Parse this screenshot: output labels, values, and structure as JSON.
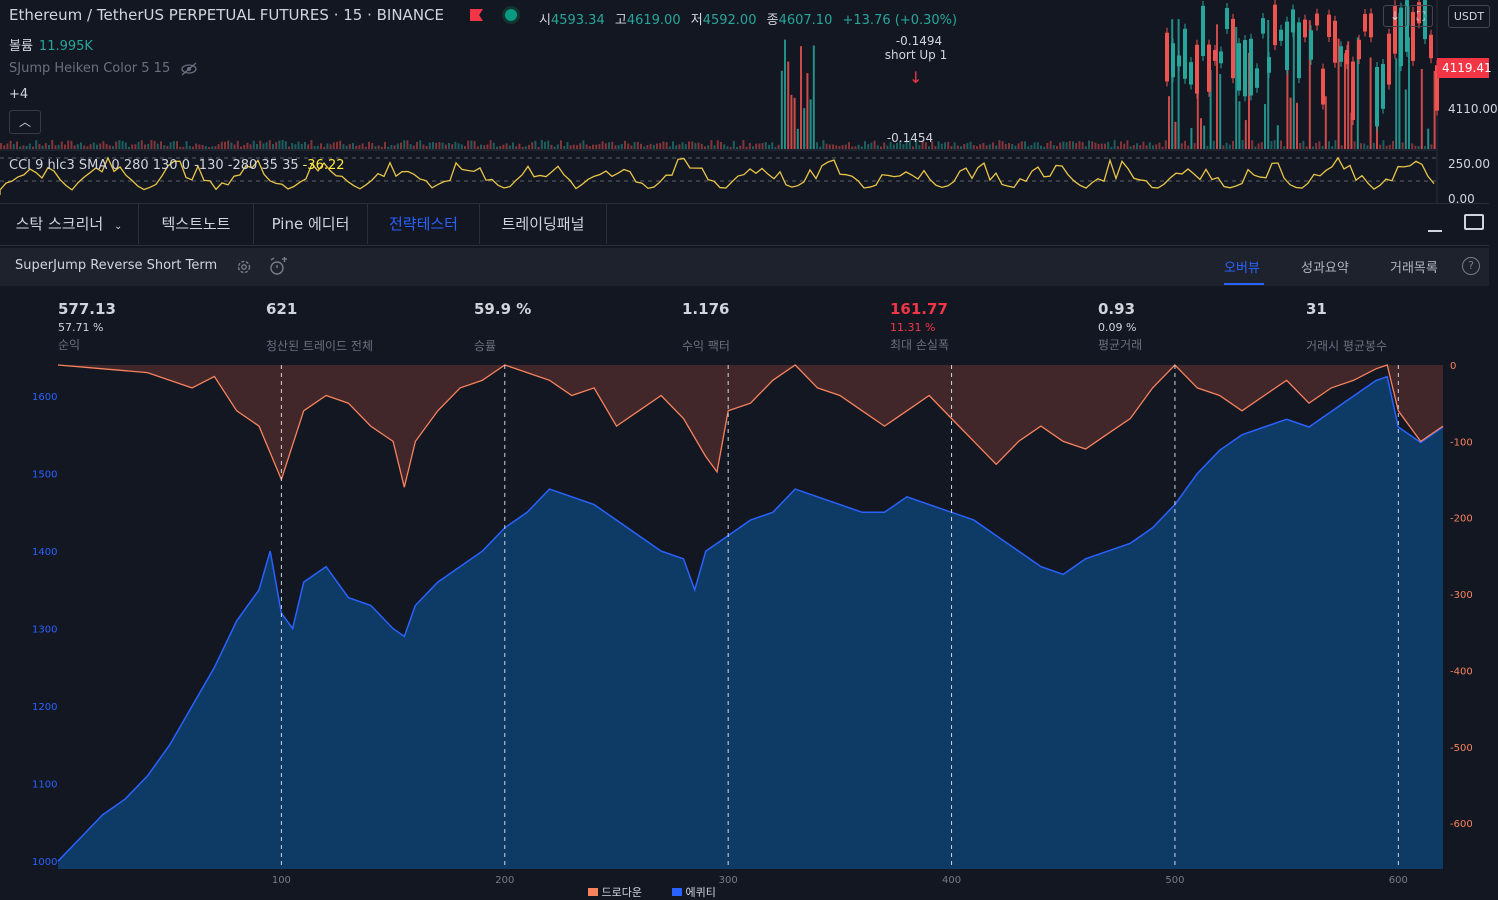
{
  "header": {
    "symbol": "Ethereum / TetherUS PERPETUAL FUTURES · 15 · BINANCE",
    "ohlc": [
      {
        "k": "시",
        "v": "4593.34"
      },
      {
        "k": "고",
        "v": "4619.00"
      },
      {
        "k": "저",
        "v": "4592.00"
      },
      {
        "k": "종",
        "v": "4607.10"
      }
    ],
    "change": "+13.76 (+0.30%)",
    "volume_label": "볼륨",
    "volume_value": "11.995K",
    "indicator": "SJump Heiken Color 5 15",
    "more": "+4",
    "cci": "CCI 9 hlc3 SMA 0 280 130 0 -130 -280 35 35",
    "cci_value": "-36.22",
    "currency": "USDT",
    "last_price": "4119.41",
    "price_tick": "4110.00",
    "cci_tick": "250.00",
    "cci_tick2": "0.00",
    "annotation_top": "-0.1494",
    "annotation_label": "short Up 1",
    "annotation_bottom": "-0.1454"
  },
  "bottom_tabs": [
    "스탁 스크리너",
    "텍스트노트",
    "Pine 에디터",
    "전략테스터",
    "트레이딩패널"
  ],
  "active_tab": "전략테스터",
  "strategy": {
    "name": "SuperJump Reverse Short Term",
    "subtabs": [
      "오버뷰",
      "성과요약",
      "거래목록"
    ],
    "active_subtab": "오버뷰"
  },
  "metrics": [
    {
      "value": "577.13",
      "pct": "57.71 %",
      "label": "순익"
    },
    {
      "value": "621",
      "pct": "",
      "label": "청산된 트레이드 전체"
    },
    {
      "value": "59.9 %",
      "pct": "",
      "label": "승률"
    },
    {
      "value": "1.176",
      "pct": "",
      "label": "수익 팩터"
    },
    {
      "value": "161.77",
      "pct": "11.31 %",
      "label": "최대 손실폭",
      "red": true
    },
    {
      "value": "0.93",
      "pct": "0.09 %",
      "label": "평균거래"
    },
    {
      "value": "31",
      "pct": "",
      "label": "거래시 평균봉수"
    }
  ],
  "colors": {
    "equity": "#2962ff",
    "equity_fill": "#0e3a66",
    "drawdown": "#f7825d",
    "drawdown_fill": "#4a2a2a",
    "up": "#26a69a",
    "down": "#ef5350"
  },
  "chart_data": {
    "type": "area",
    "x_ticks": [
      100,
      200,
      300,
      400,
      500,
      600
    ],
    "x_range": [
      0,
      620
    ],
    "equity_axis": {
      "ticks": [
        1000,
        1100,
        1200,
        1300,
        1400,
        1500,
        1600
      ],
      "range": [
        990,
        1640
      ]
    },
    "drawdown_axis": {
      "ticks": [
        0,
        -100,
        -200,
        -300,
        -400,
        -500,
        -600
      ],
      "range": [
        -660,
        0
      ]
    },
    "equity": [
      [
        0,
        1000
      ],
      [
        10,
        1030
      ],
      [
        20,
        1060
      ],
      [
        30,
        1080
      ],
      [
        40,
        1110
      ],
      [
        50,
        1150
      ],
      [
        60,
        1200
      ],
      [
        70,
        1250
      ],
      [
        80,
        1310
      ],
      [
        90,
        1350
      ],
      [
        95,
        1400
      ],
      [
        100,
        1320
      ],
      [
        105,
        1300
      ],
      [
        110,
        1360
      ],
      [
        120,
        1380
      ],
      [
        130,
        1340
      ],
      [
        140,
        1330
      ],
      [
        150,
        1300
      ],
      [
        155,
        1290
      ],
      [
        160,
        1330
      ],
      [
        170,
        1360
      ],
      [
        180,
        1380
      ],
      [
        190,
        1400
      ],
      [
        200,
        1430
      ],
      [
        210,
        1450
      ],
      [
        220,
        1480
      ],
      [
        230,
        1470
      ],
      [
        240,
        1460
      ],
      [
        250,
        1440
      ],
      [
        260,
        1420
      ],
      [
        270,
        1400
      ],
      [
        280,
        1390
      ],
      [
        285,
        1350
      ],
      [
        290,
        1400
      ],
      [
        300,
        1420
      ],
      [
        310,
        1440
      ],
      [
        320,
        1450
      ],
      [
        330,
        1480
      ],
      [
        340,
        1470
      ],
      [
        350,
        1460
      ],
      [
        360,
        1450
      ],
      [
        370,
        1450
      ],
      [
        380,
        1470
      ],
      [
        390,
        1460
      ],
      [
        400,
        1450
      ],
      [
        410,
        1440
      ],
      [
        420,
        1420
      ],
      [
        430,
        1400
      ],
      [
        440,
        1380
      ],
      [
        450,
        1370
      ],
      [
        460,
        1390
      ],
      [
        470,
        1400
      ],
      [
        480,
        1410
      ],
      [
        490,
        1430
      ],
      [
        500,
        1460
      ],
      [
        510,
        1500
      ],
      [
        520,
        1530
      ],
      [
        530,
        1550
      ],
      [
        540,
        1560
      ],
      [
        550,
        1570
      ],
      [
        560,
        1560
      ],
      [
        570,
        1580
      ],
      [
        580,
        1600
      ],
      [
        590,
        1620
      ],
      [
        595,
        1625
      ],
      [
        600,
        1560
      ],
      [
        610,
        1540
      ],
      [
        620,
        1560
      ]
    ],
    "drawdown": [
      [
        0,
        0
      ],
      [
        20,
        -5
      ],
      [
        40,
        -10
      ],
      [
        60,
        -30
      ],
      [
        70,
        -15
      ],
      [
        80,
        -60
      ],
      [
        90,
        -80
      ],
      [
        100,
        -150
      ],
      [
        110,
        -60
      ],
      [
        120,
        -40
      ],
      [
        130,
        -50
      ],
      [
        140,
        -80
      ],
      [
        150,
        -100
      ],
      [
        155,
        -160
      ],
      [
        160,
        -100
      ],
      [
        170,
        -60
      ],
      [
        180,
        -30
      ],
      [
        190,
        -20
      ],
      [
        200,
        0
      ],
      [
        210,
        -10
      ],
      [
        220,
        -20
      ],
      [
        230,
        -40
      ],
      [
        240,
        -30
      ],
      [
        250,
        -80
      ],
      [
        260,
        -60
      ],
      [
        270,
        -40
      ],
      [
        280,
        -70
      ],
      [
        290,
        -120
      ],
      [
        295,
        -140
      ],
      [
        300,
        -60
      ],
      [
        310,
        -50
      ],
      [
        320,
        -20
      ],
      [
        330,
        0
      ],
      [
        340,
        -30
      ],
      [
        350,
        -40
      ],
      [
        360,
        -60
      ],
      [
        370,
        -80
      ],
      [
        380,
        -60
      ],
      [
        390,
        -40
      ],
      [
        400,
        -70
      ],
      [
        410,
        -100
      ],
      [
        420,
        -130
      ],
      [
        430,
        -100
      ],
      [
        440,
        -80
      ],
      [
        450,
        -100
      ],
      [
        460,
        -110
      ],
      [
        470,
        -90
      ],
      [
        480,
        -70
      ],
      [
        490,
        -30
      ],
      [
        500,
        0
      ],
      [
        510,
        -30
      ],
      [
        520,
        -40
      ],
      [
        530,
        -60
      ],
      [
        540,
        -40
      ],
      [
        550,
        -20
      ],
      [
        560,
        -50
      ],
      [
        570,
        -30
      ],
      [
        580,
        -20
      ],
      [
        590,
        -5
      ],
      [
        595,
        0
      ],
      [
        600,
        -60
      ],
      [
        610,
        -100
      ],
      [
        620,
        -80
      ]
    ],
    "legend": [
      "드로다운",
      "에퀴티"
    ]
  }
}
